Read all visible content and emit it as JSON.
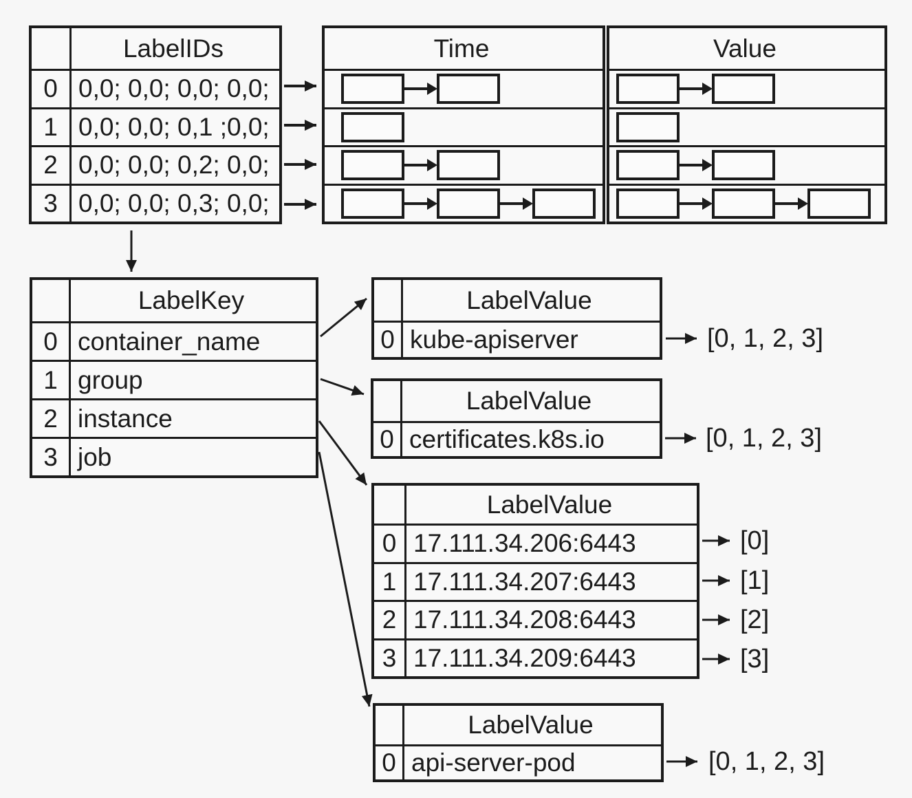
{
  "colors": {
    "ink": "#1b1b1b",
    "background": "#f7f7f7"
  },
  "label_ids_table": {
    "header": "LabelIDs",
    "rows": [
      {
        "index": "0",
        "label_ids": "0,0; 0,0; 0,0; 0,0;"
      },
      {
        "index": "1",
        "label_ids": "0,0; 0,0; 0,1 ;0,0;"
      },
      {
        "index": "2",
        "label_ids": "0,0; 0,0; 0,2; 0,0;"
      },
      {
        "index": "3",
        "label_ids": "0,0; 0,0; 0,3; 0,0;"
      }
    ]
  },
  "time_table": {
    "header": "Time",
    "chunk_counts": [
      2,
      1,
      2,
      3
    ]
  },
  "value_table": {
    "header": "Value",
    "chunk_counts": [
      2,
      1,
      2,
      3
    ]
  },
  "label_key_table": {
    "header": "LabelKey",
    "rows": [
      {
        "index": "0",
        "key": "container_name"
      },
      {
        "index": "1",
        "key": "group"
      },
      {
        "index": "2",
        "key": "instance"
      },
      {
        "index": "3",
        "key": "job"
      }
    ]
  },
  "label_value_tables": [
    {
      "header": "LabelValue",
      "rows": [
        {
          "index": "0",
          "value": "kube-apiserver",
          "postings": "[0, 1, 2, 3]"
        }
      ]
    },
    {
      "header": "LabelValue",
      "rows": [
        {
          "index": "0",
          "value": "certificates.k8s.io",
          "postings": "[0, 1, 2, 3]"
        }
      ]
    },
    {
      "header": "LabelValue",
      "rows": [
        {
          "index": "0",
          "value": "17.111.34.206:6443",
          "postings": "[0]"
        },
        {
          "index": "1",
          "value": "17.111.34.207:6443",
          "postings": "[1]"
        },
        {
          "index": "2",
          "value": "17.111.34.208:6443",
          "postings": "[2]"
        },
        {
          "index": "3",
          "value": "17.111.34.209:6443",
          "postings": "[3]"
        }
      ]
    },
    {
      "header": "LabelValue",
      "rows": [
        {
          "index": "0",
          "value": "api-server-pod",
          "postings": "[0, 1, 2, 3]"
        }
      ]
    }
  ]
}
